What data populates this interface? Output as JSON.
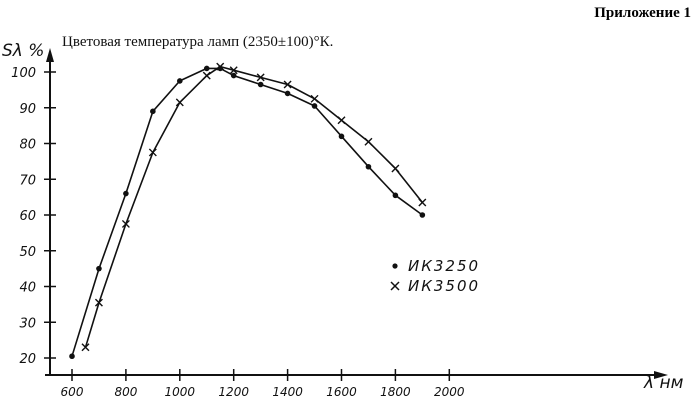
{
  "appendix": "Приложение 1",
  "chart_data": {
    "type": "line",
    "title": "Цветовая температура ламп (2350±100)°К.",
    "ylabel": "Sλ %",
    "xlabel": "λ нм",
    "xlim": [
      600,
      2000
    ],
    "ylim": [
      20,
      100
    ],
    "xticks": [
      "600",
      "800",
      "1000",
      "1200",
      "1400",
      "1600",
      "1800",
      "2000"
    ],
    "yticks": [
      "20",
      "30",
      "40",
      "50",
      "60",
      "70",
      "80",
      "90",
      "100"
    ],
    "grid": false,
    "legend_position": "center-right",
    "series": [
      {
        "name": "ИК3250",
        "marker": "dot",
        "x": [
          600,
          700,
          800,
          900,
          1000,
          1100,
          1150,
          1200,
          1300,
          1400,
          1500,
          1600,
          1700,
          1800,
          1900
        ],
        "y": [
          20.5,
          45,
          66,
          89,
          97.5,
          101,
          101,
          99,
          96.5,
          94,
          90.5,
          82,
          73.5,
          65.5,
          60
        ]
      },
      {
        "name": "ИК3500",
        "marker": "x",
        "x": [
          650,
          700,
          800,
          900,
          1000,
          1100,
          1150,
          1200,
          1300,
          1400,
          1500,
          1600,
          1700,
          1800,
          1900
        ],
        "y": [
          23,
          35.5,
          57.5,
          77.5,
          91.5,
          99,
          101.5,
          100.5,
          98.5,
          96.5,
          92.5,
          86.5,
          80.5,
          73,
          63.5
        ]
      }
    ]
  }
}
